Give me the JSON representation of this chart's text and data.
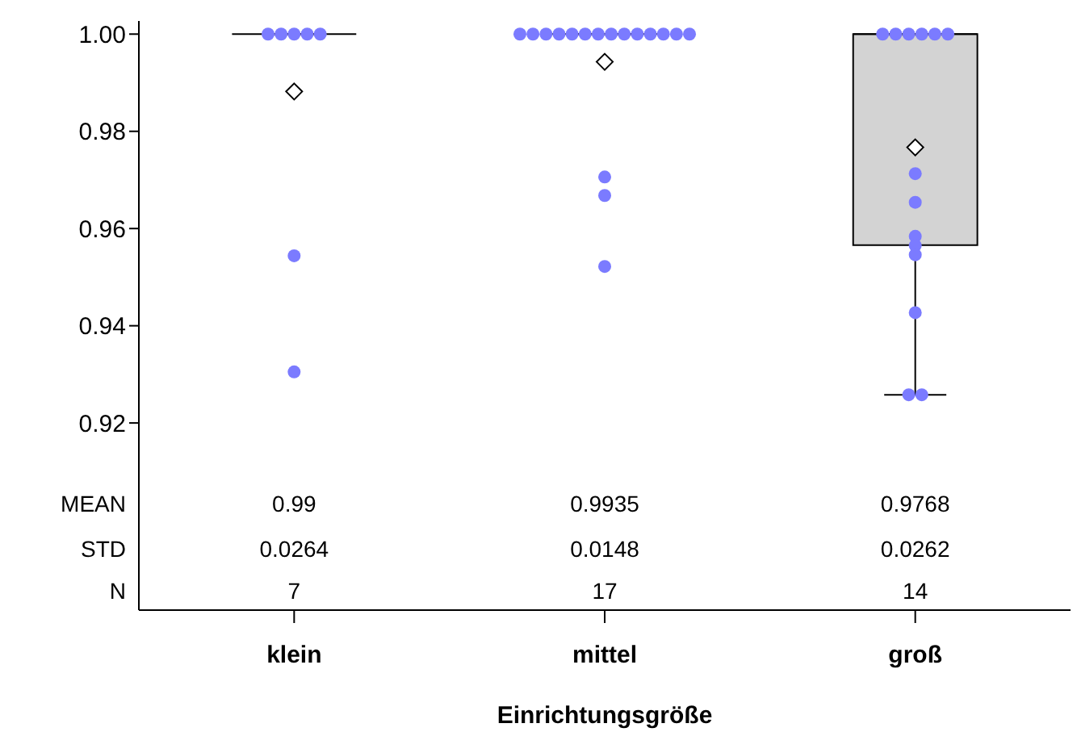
{
  "chart_data": {
    "type": "box",
    "colors": [
      "#000000",
      "#000000",
      "#d3d3d3"
    ],
    "xlabel": "Einrichtungsgröße",
    "categories": [
      "klein",
      "mittel",
      "groß"
    ],
    "boxes": [
      {
        "low": 1.0,
        "q1": 1.0,
        "median": 1.0,
        "q3": 1.0,
        "high": 1.0,
        "mean": 0.9882
      },
      {
        "low": 1.0,
        "q1": 1.0,
        "median": 1.0,
        "q3": 1.0,
        "high": 1.0,
        "mean": 0.9943
      },
      {
        "low": 0.9258,
        "q1": 0.9566,
        "median": 1.0,
        "q3": 1.0,
        "high": 1.0,
        "mean": 0.9767
      }
    ],
    "series": [
      {
        "type": "scatter",
        "color": "#7b7bff",
        "marker": "circle",
        "x": [
          "klein",
          "klein",
          "klein",
          "klein",
          "klein",
          "klein",
          "klein",
          "mittel",
          "mittel",
          "mittel",
          "mittel",
          "mittel",
          "mittel",
          "mittel",
          "mittel",
          "mittel",
          "mittel",
          "mittel",
          "mittel",
          "mittel",
          "mittel",
          "mittel",
          "mittel",
          "mittel",
          "groß",
          "groß",
          "groß",
          "groß",
          "groß",
          "groß",
          "groß",
          "groß",
          "groß",
          "groß",
          "groß",
          "groß",
          "groß",
          "groß"
        ],
        "values": [
          1.0,
          1.0,
          1.0,
          1.0,
          1.0,
          0.9544,
          0.9305,
          1.0,
          1.0,
          1.0,
          1.0,
          1.0,
          1.0,
          1.0,
          1.0,
          1.0,
          1.0,
          1.0,
          1.0,
          1.0,
          1.0,
          0.9706,
          0.9668,
          0.9522,
          1.0,
          1.0,
          1.0,
          1.0,
          1.0,
          1.0,
          0.9713,
          0.9654,
          0.9584,
          0.9565,
          0.9546,
          0.9427,
          0.9258,
          0.9258
        ]
      }
    ],
    "ylim": [
      0.8815,
      1.0027
    ],
    "yticks": [
      0.92,
      0.94,
      0.96,
      0.98,
      {
        "value": 1.0,
        "label": "1.00"
      }
    ],
    "annotations": [
      "MEAN",
      "STD",
      "N",
      "0.99",
      "0.0264",
      "7",
      "0.9935",
      "0.0148",
      "17",
      "0.9768",
      "0.0262",
      "14"
    ]
  }
}
